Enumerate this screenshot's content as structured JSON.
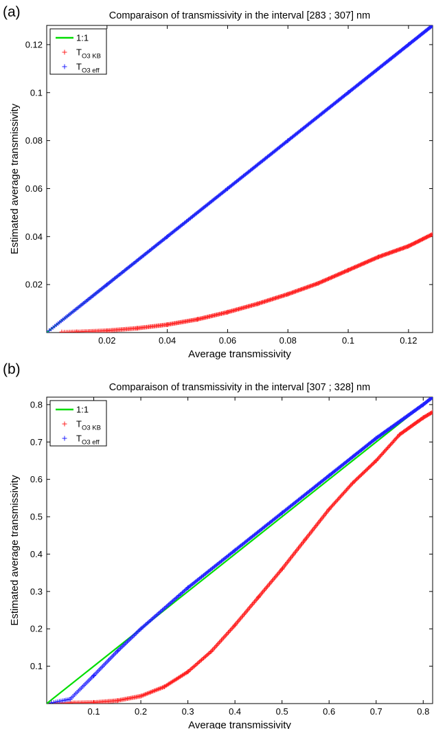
{
  "chart_data": [
    {
      "panel": "(a)",
      "type": "scatter",
      "title": "Comparaison of transmissivity in the interval [283 ; 307] nm",
      "xlabel": "Average transmissivity",
      "ylabel": "Estimated average transmissivity",
      "xlim": [
        0,
        0.128
      ],
      "ylim": [
        0,
        0.128
      ],
      "xticks": [
        0.02,
        0.04,
        0.06,
        0.08,
        0.1,
        0.12
      ],
      "xtick_labels": [
        "0.02",
        "0.04",
        "0.06",
        "0.08",
        "0.1",
        "0.12"
      ],
      "yticks": [
        0.02,
        0.04,
        0.06,
        0.08,
        0.1,
        0.12
      ],
      "ytick_labels": [
        "0.02",
        "0.04",
        "0.06",
        "0.08",
        "0.1",
        "0.12"
      ],
      "legend": {
        "placement": "top-left",
        "entries": [
          {
            "label": "1:1",
            "sub": "",
            "kind": "line",
            "color": "#00dd00"
          },
          {
            "label": "T",
            "sub": "O3 KB",
            "kind": "plus",
            "color": "#ff2020"
          },
          {
            "label": "T",
            "sub": "O3 eff",
            "kind": "plus",
            "color": "#2020ff"
          }
        ]
      },
      "series": [
        {
          "name": "1:1",
          "kind": "line",
          "color": "#00dd00",
          "x": [
            0,
            0.128
          ],
          "y": [
            0,
            0.128
          ]
        },
        {
          "name": "T O3 KB",
          "kind": "plus",
          "color": "#ff2020",
          "x": [
            0.005,
            0.01,
            0.02,
            0.03,
            0.04,
            0.05,
            0.06,
            0.07,
            0.08,
            0.09,
            0.1,
            0.11,
            0.12,
            0.128
          ],
          "y": [
            0.0002,
            0.0003,
            0.0008,
            0.0018,
            0.0033,
            0.0055,
            0.0085,
            0.012,
            0.016,
            0.0205,
            0.026,
            0.0315,
            0.036,
            0.041
          ]
        },
        {
          "name": "T O3 eff",
          "kind": "plus",
          "color": "#2020ff",
          "x": [
            0,
            0.02,
            0.04,
            0.06,
            0.08,
            0.1,
            0.12,
            0.128
          ],
          "y": [
            0,
            0.02,
            0.04,
            0.06,
            0.08,
            0.1,
            0.12,
            0.128
          ]
        }
      ]
    },
    {
      "panel": "(b)",
      "type": "scatter",
      "title": "Comparaison of transmissivity in the interval [307 ; 328] nm",
      "xlabel": "Average transmissivity",
      "ylabel": "Estimated average transmissivity",
      "xlim": [
        0,
        0.82
      ],
      "ylim": [
        0,
        0.82
      ],
      "xticks": [
        0.1,
        0.2,
        0.3,
        0.4,
        0.5,
        0.6,
        0.7,
        0.8
      ],
      "xtick_labels": [
        "0.1",
        "0.2",
        "0.3",
        "0.4",
        "0.5",
        "0.6",
        "0.7",
        "0.8"
      ],
      "yticks": [
        0.1,
        0.2,
        0.3,
        0.4,
        0.5,
        0.6,
        0.7,
        0.8
      ],
      "ytick_labels": [
        "0.1",
        "0.2",
        "0.3",
        "0.4",
        "0.5",
        "0.6",
        "0.7",
        "0.8"
      ],
      "legend": {
        "placement": "top-left",
        "entries": [
          {
            "label": "1:1",
            "sub": "",
            "kind": "line",
            "color": "#00dd00"
          },
          {
            "label": "T",
            "sub": "O3 KB",
            "kind": "plus",
            "color": "#ff2020"
          },
          {
            "label": "T",
            "sub": "O3 eff",
            "kind": "plus",
            "color": "#2020ff"
          }
        ]
      },
      "series": [
        {
          "name": "1:1",
          "kind": "line",
          "color": "#00dd00",
          "x": [
            0,
            0.82
          ],
          "y": [
            0,
            0.82
          ]
        },
        {
          "name": "T O3 KB",
          "kind": "plus",
          "color": "#ff2020",
          "x": [
            0.01,
            0.05,
            0.1,
            0.15,
            0.2,
            0.25,
            0.3,
            0.35,
            0.4,
            0.45,
            0.5,
            0.55,
            0.6,
            0.65,
            0.7,
            0.75,
            0.8,
            0.82
          ],
          "y": [
            0.002,
            0.002,
            0.003,
            0.008,
            0.02,
            0.045,
            0.085,
            0.14,
            0.21,
            0.285,
            0.36,
            0.44,
            0.52,
            0.59,
            0.65,
            0.72,
            0.765,
            0.78
          ]
        },
        {
          "name": "T O3 eff",
          "kind": "plus",
          "color": "#2020ff",
          "x": [
            0.01,
            0.05,
            0.1,
            0.15,
            0.2,
            0.3,
            0.4,
            0.5,
            0.6,
            0.7,
            0.8,
            0.82
          ],
          "y": [
            0.002,
            0.012,
            0.075,
            0.14,
            0.2,
            0.31,
            0.41,
            0.51,
            0.61,
            0.71,
            0.8,
            0.82
          ]
        }
      ]
    }
  ]
}
